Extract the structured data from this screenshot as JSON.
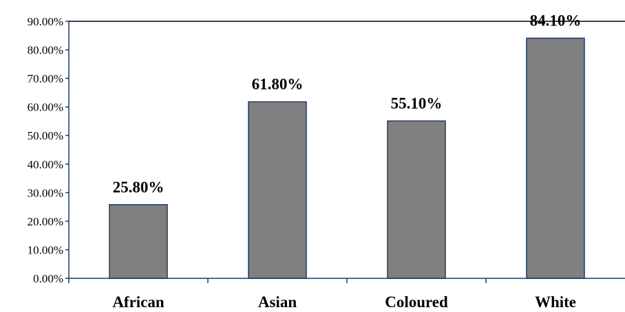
{
  "chart_data": {
    "type": "bar",
    "categories": [
      "African",
      "Asian",
      "Coloured",
      "White"
    ],
    "values": [
      25.8,
      61.8,
      55.1,
      84.1
    ],
    "data_labels": [
      "25.80%",
      "61.80%",
      "55.10%",
      "84.10%"
    ],
    "y_ticks": [
      0,
      10,
      20,
      30,
      40,
      50,
      60,
      70,
      80,
      90
    ],
    "y_tick_labels": [
      "0.00%",
      "10.00%",
      "20.00%",
      "30.00%",
      "40.00%",
      "50.00%",
      "60.00%",
      "70.00%",
      "80.00%",
      "90.00%"
    ],
    "ylim": [
      0,
      90
    ],
    "title": "",
    "xlabel": "",
    "ylabel": "",
    "grid": false,
    "legend": "none",
    "colors": {
      "bar_fill": "#808080",
      "bar_stroke": "#1f3864",
      "axis": "#1f3864",
      "top_line": "#000000"
    }
  }
}
